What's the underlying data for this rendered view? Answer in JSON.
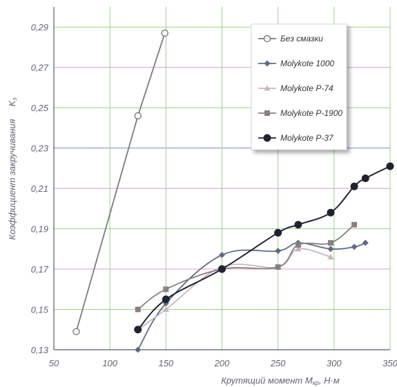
{
  "chart_data": {
    "type": "line",
    "xlabel": {
      "main": "Крутящий момент M",
      "subscript": "кр",
      "unit": ", Н·м"
    },
    "ylabel": {
      "line1": "Коэффициент закручивания",
      "line2": "K",
      "subscript": "з"
    },
    "xlim": [
      50,
      350
    ],
    "ylim": [
      0.13,
      0.3
    ],
    "x_ticks": [
      "50",
      "100",
      "150",
      "200",
      "250",
      "300",
      "350"
    ],
    "y_ticks": [
      "0,13",
      "0,15",
      "0,17",
      "0,19",
      "0,21",
      "0,23",
      "0,25",
      "0,27",
      "0,29"
    ],
    "grid": true,
    "grid_colors": [
      "#7a88c9",
      "#9fcf8e",
      "#d7a0c9",
      "#9fcf8e",
      "#d7a0c9",
      "#7a88c9",
      "#9fcf8e",
      "#d7a0c9",
      "#9fcf8e"
    ],
    "legend_position": "top-right",
    "series": [
      {
        "name": "Без смазки",
        "marker": "open-circle",
        "color": "#7a7a7a",
        "x": [
          70,
          125,
          149
        ],
        "y": [
          0.139,
          0.246,
          0.287
        ]
      },
      {
        "name": "Molykote 1000",
        "marker": "diamond",
        "color": "#5e6a85",
        "x": [
          125,
          150,
          200,
          250,
          268,
          297,
          318,
          328
        ],
        "y": [
          0.13,
          0.153,
          0.177,
          0.179,
          0.183,
          0.18,
          0.181,
          0.183
        ]
      },
      {
        "name": "Molykote P-74",
        "marker": "triangle",
        "color": "#c9b6bb",
        "x": [
          125,
          150,
          200,
          250,
          268,
          297
        ],
        "y": [
          0.14,
          0.15,
          0.171,
          0.171,
          0.18,
          0.176
        ]
      },
      {
        "name": "Molykote P-1900",
        "marker": "square",
        "color": "#8b7f80",
        "x": [
          125,
          150,
          200,
          250,
          268,
          297,
          318
        ],
        "y": [
          0.15,
          0.16,
          0.17,
          0.171,
          0.182,
          0.183,
          0.192
        ]
      },
      {
        "name": "Molykote P-37",
        "marker": "filled-circle",
        "color": "#1f2330",
        "x": [
          125,
          150,
          200,
          250,
          268,
          297,
          318,
          328,
          350
        ],
        "y": [
          0.14,
          0.155,
          0.17,
          0.188,
          0.192,
          0.198,
          0.211,
          0.215,
          0.221
        ]
      }
    ]
  }
}
